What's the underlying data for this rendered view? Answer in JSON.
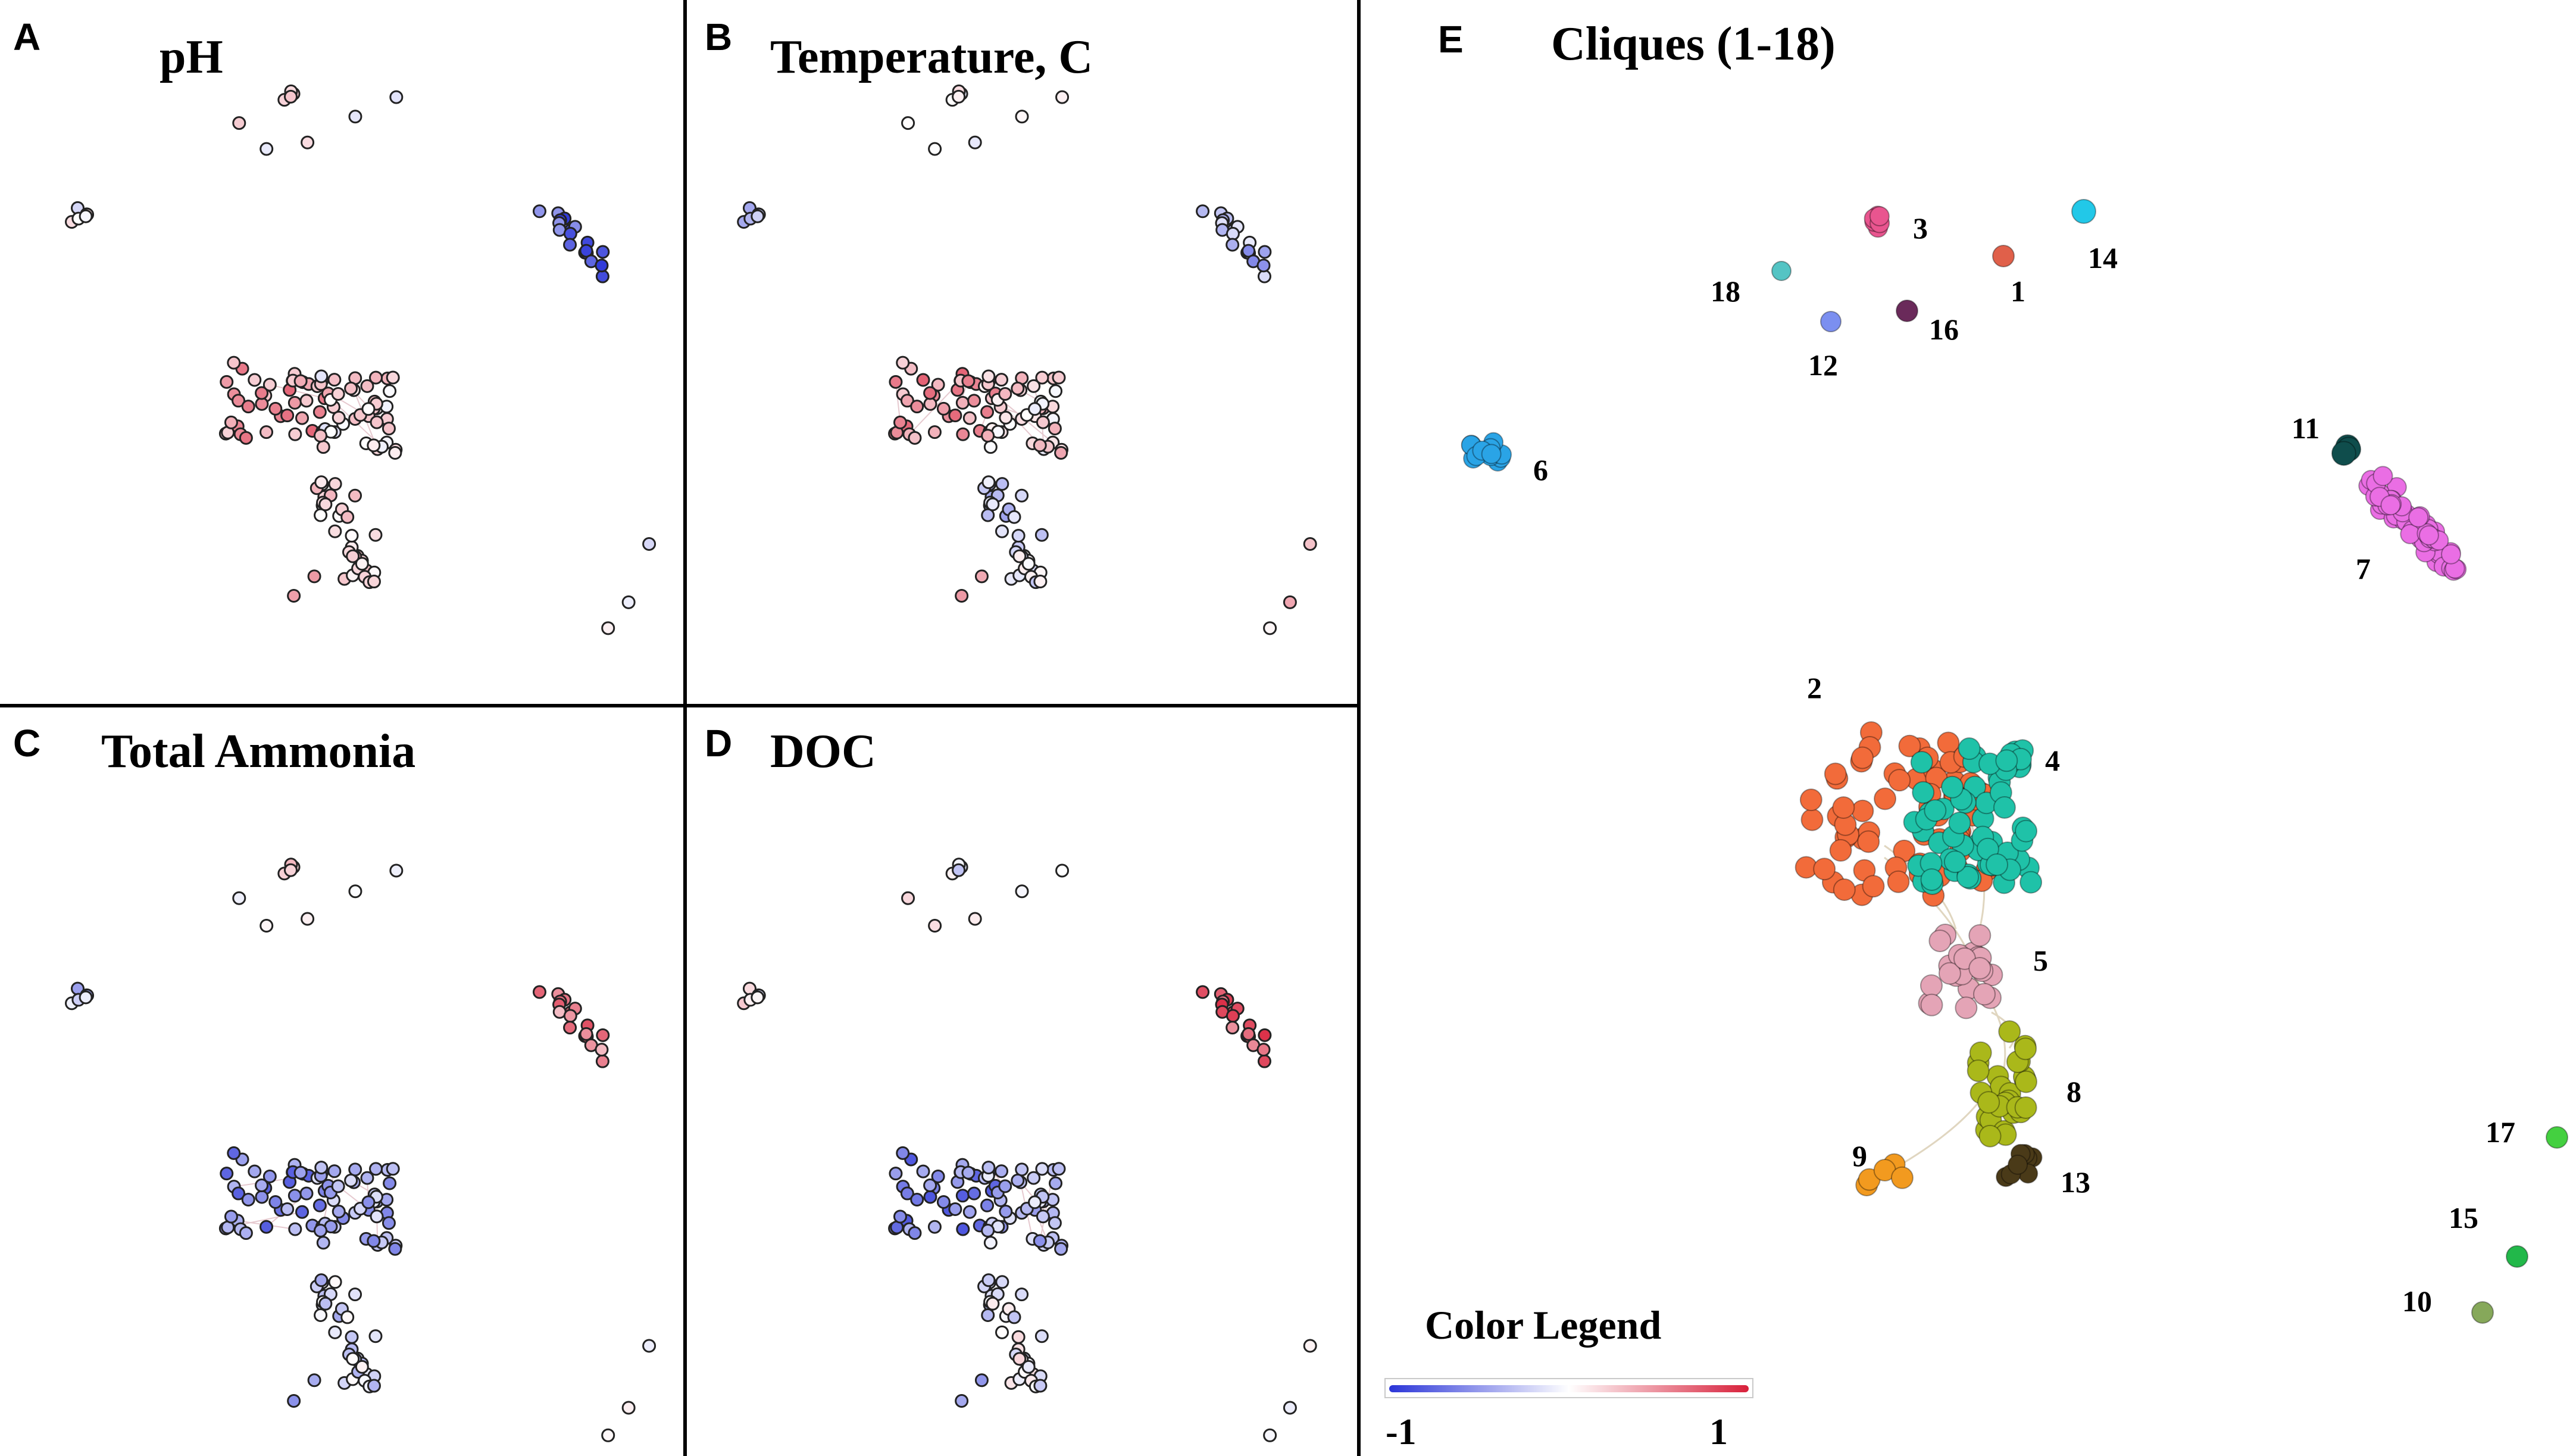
{
  "panels": [
    {
      "id": "A",
      "label": "A",
      "title": "pH"
    },
    {
      "id": "B",
      "label": "B",
      "title": "Temperature, C"
    },
    {
      "id": "C",
      "label": "C",
      "title": "Total Ammonia"
    },
    {
      "id": "D",
      "label": "D",
      "title": "DOC"
    },
    {
      "id": "E",
      "label": "E",
      "title": "Cliques (1-18)"
    }
  ],
  "cliques": [
    {
      "num": "1",
      "color": "#e0604a"
    },
    {
      "num": "2",
      "color": "#f26b3a"
    },
    {
      "num": "3",
      "color": "#e9558f"
    },
    {
      "num": "4",
      "color": "#1fc2a8"
    },
    {
      "num": "5",
      "color": "#e4a4b6"
    },
    {
      "num": "6",
      "color": "#2aa4e6"
    },
    {
      "num": "7",
      "color": "#ea6ee4"
    },
    {
      "num": "8",
      "color": "#aab81a"
    },
    {
      "num": "9",
      "color": "#f29a1f"
    },
    {
      "num": "10",
      "color": "#86a85a"
    },
    {
      "num": "11",
      "color": "#0f4d4c"
    },
    {
      "num": "12",
      "color": "#7b8ff0"
    },
    {
      "num": "13",
      "color": "#4a3a18"
    },
    {
      "num": "14",
      "color": "#22c8e8"
    },
    {
      "num": "15",
      "color": "#22b84a"
    },
    {
      "num": "16",
      "color": "#6a2a5a"
    },
    {
      "num": "17",
      "color": "#44d040"
    },
    {
      "num": "18",
      "color": "#54c4c4"
    }
  ],
  "legend": {
    "title": "Color Legend",
    "min_label": "-1",
    "max_label": "1",
    "low_color": "#2b35d8",
    "mid_color": "#ffffff",
    "high_color": "#d8203a"
  }
}
